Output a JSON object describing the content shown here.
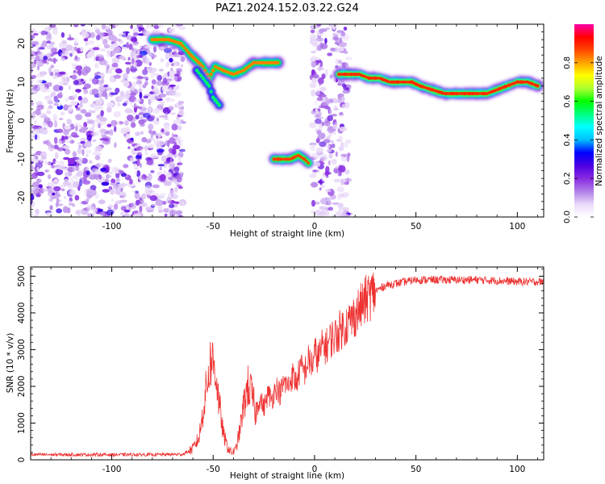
{
  "figure": {
    "title": "PAZ1.2024.152.03.22.G24"
  },
  "chart_data": [
    {
      "type": "heatmap",
      "xlabel": "Height of straight line (km)",
      "ylabel": "Frequency (Hz)",
      "xlim": [
        -140,
        113
      ],
      "ylim": [
        -25,
        25
      ],
      "xticks": [
        -100,
        -50,
        0,
        50,
        100
      ],
      "yticks": [
        -20,
        -10,
        0,
        10,
        20
      ],
      "colorbar": {
        "label": "Normalized spectral amplitude",
        "ticks": [
          0.0,
          0.2,
          0.4,
          0.6,
          0.8
        ],
        "range": [
          0,
          1
        ],
        "colormap": [
          "#ffffff",
          "#e9d9f8",
          "#b07ee8",
          "#8a2be2",
          "#4b00e0",
          "#0000ff",
          "#00bfff",
          "#00ffff",
          "#00ff7f",
          "#00ff00",
          "#adff2f",
          "#ffff00",
          "#ffa500",
          "#ff4500",
          "#ff0000",
          "#ff00aa"
        ]
      },
      "noise_regions": [
        {
          "x": [
            -140,
            -65
          ],
          "y": [
            -25,
            25
          ],
          "amplitude": 0.35
        },
        {
          "x": [
            -1,
            17
          ],
          "y": [
            -25,
            25
          ],
          "amplitude": 0.3
        }
      ],
      "traces": [
        {
          "points": [
            [
              -80,
              21
            ],
            [
              -72,
              21
            ],
            [
              -66,
              20
            ],
            [
              -61,
              17
            ],
            [
              -55,
              14
            ],
            [
              -52,
              11
            ],
            [
              -49,
              14
            ],
            [
              -45,
              13
            ],
            [
              -40,
              12
            ],
            [
              -35,
              13
            ],
            [
              -30,
              15
            ],
            [
              -25,
              15
            ],
            [
              -18,
              15
            ]
          ],
          "amplitude": 0.9
        },
        {
          "points": [
            [
              -58,
              13
            ],
            [
              -55,
              11
            ],
            [
              -52,
              9
            ],
            [
              -50,
              6
            ],
            [
              -47,
              4
            ]
          ],
          "amplitude": 0.6
        },
        {
          "points": [
            [
              -20,
              -10
            ],
            [
              -16,
              -10
            ],
            [
              -12,
              -10
            ],
            [
              -8,
              -9
            ],
            [
              -5,
              -10
            ],
            [
              -3,
              -11
            ]
          ],
          "amplitude": 0.95
        },
        {
          "points": [
            [
              12,
              12
            ],
            [
              18,
              12
            ],
            [
              22,
              12
            ],
            [
              27,
              11
            ],
            [
              32,
              11
            ],
            [
              37,
              10
            ],
            [
              44,
              10
            ],
            [
              48,
              10
            ],
            [
              52,
              9
            ],
            [
              58,
              8
            ],
            [
              64,
              7
            ],
            [
              70,
              7
            ],
            [
              76,
              7
            ],
            [
              80,
              7
            ],
            [
              85,
              7
            ],
            [
              90,
              8
            ],
            [
              95,
              9
            ],
            [
              100,
              10
            ],
            [
              105,
              10
            ],
            [
              110,
              9
            ]
          ],
          "amplitude": 0.97
        }
      ]
    },
    {
      "type": "line",
      "xlabel": "Height of straight line (km)",
      "ylabel": "SNR (10 * v/v)",
      "xlim": [
        -140,
        113
      ],
      "ylim": [
        0,
        5250
      ],
      "xticks": [
        -100,
        -50,
        0,
        50,
        100
      ],
      "yticks": [
        0,
        1000,
        2000,
        3000,
        4000,
        5000
      ],
      "color": "#ee3333",
      "x": [
        -140,
        -120,
        -100,
        -80,
        -65,
        -60,
        -57,
        -55,
        -53,
        -51,
        -49,
        -47,
        -45,
        -43,
        -41,
        -39,
        -37,
        -35,
        -33,
        -31,
        -29,
        -27,
        -25,
        -23,
        -21,
        -19,
        -17,
        -15,
        -13,
        -11,
        -9,
        -7,
        -5,
        -3,
        -1,
        0,
        2,
        4,
        6,
        8,
        10,
        12,
        14,
        16,
        18,
        20,
        22,
        24,
        26,
        28,
        30,
        32,
        35,
        40,
        45,
        50,
        55,
        60,
        70,
        80,
        90,
        100,
        113
      ],
      "y": [
        140,
        140,
        140,
        140,
        150,
        300,
        600,
        1300,
        2100,
        2750,
        2500,
        1500,
        700,
        350,
        200,
        250,
        750,
        1450,
        2000,
        1800,
        1250,
        1700,
        1400,
        1800,
        1650,
        2000,
        1800,
        2100,
        2000,
        2300,
        2100,
        2500,
        2400,
        2700,
        2600,
        2900,
        2800,
        3100,
        3100,
        3300,
        3350,
        3500,
        3600,
        3700,
        3800,
        3950,
        4100,
        4250,
        4400,
        4500,
        4600,
        4650,
        4750,
        4800,
        4850,
        4900,
        4900,
        4900,
        4900,
        4900,
        4880,
        4850,
        4850
      ]
    }
  ]
}
